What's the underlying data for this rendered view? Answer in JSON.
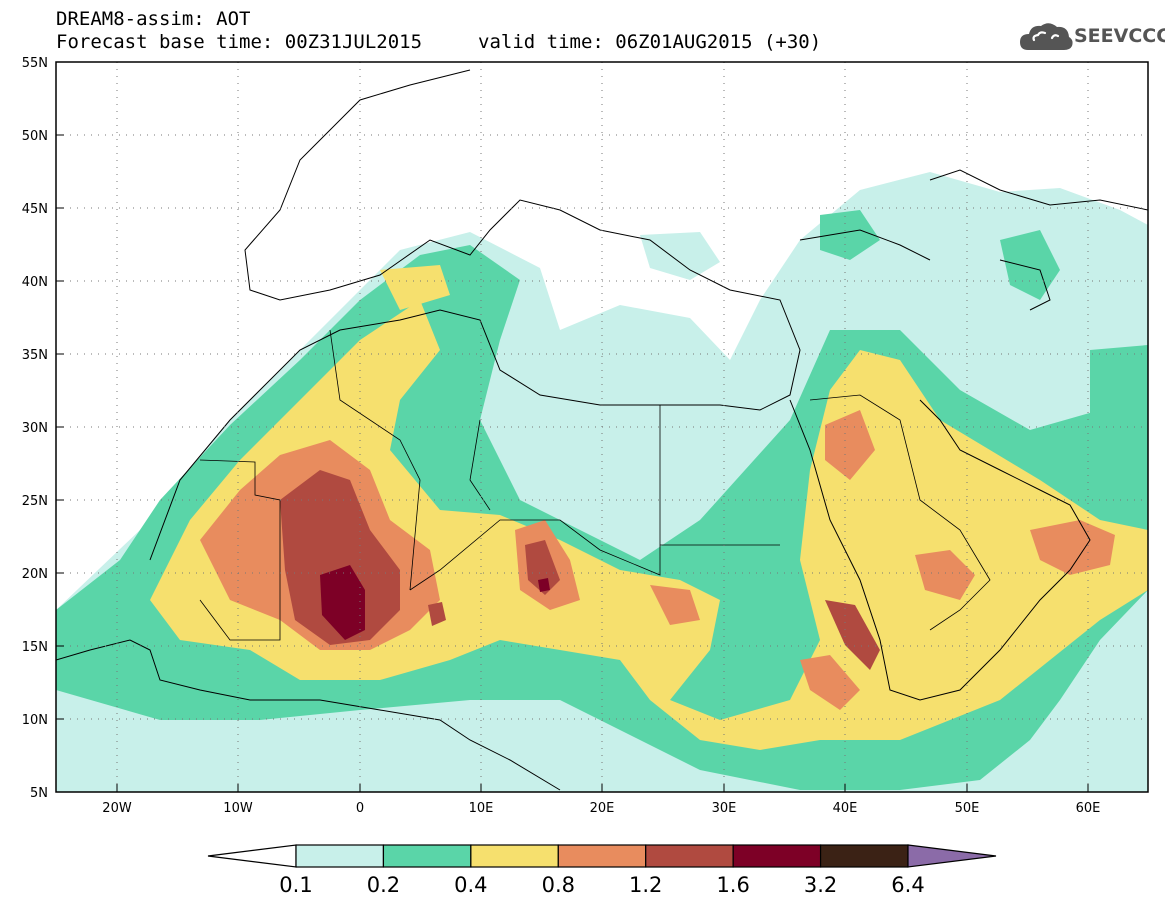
{
  "header": {
    "title": "DREAM8-assim: AOT",
    "subtitle": "Forecast base time: 00Z31JUL2015",
    "valid_time": "valid time: 06Z01AUG2015 (+30)"
  },
  "logo": {
    "text": "SEEVCCC",
    "icon": "cloud-icon"
  },
  "map": {
    "lon_range": [
      -25,
      65
    ],
    "lat_range": [
      5,
      55
    ],
    "lat_ticks": [
      "55N",
      "50N",
      "45N",
      "40N",
      "35N",
      "30N",
      "25N",
      "20N",
      "15N",
      "10N",
      "5N"
    ],
    "lon_ticks": [
      "20W",
      "10W",
      "0",
      "10E",
      "20E",
      "30E",
      "40E",
      "50E",
      "60E"
    ],
    "grid": "dotted",
    "variable": "aerosol optical thickness"
  },
  "colorbar": {
    "labels": [
      "0.1",
      "0.2",
      "0.4",
      "0.8",
      "1.2",
      "1.6",
      "3.2",
      "6.4"
    ],
    "colors": [
      "#ffffff",
      "#c8f0ea",
      "#5ad5a8",
      "#f6e06e",
      "#e88c5e",
      "#b04a40",
      "#7d0026",
      "#3b2215",
      "#8b6ba8"
    ]
  }
}
